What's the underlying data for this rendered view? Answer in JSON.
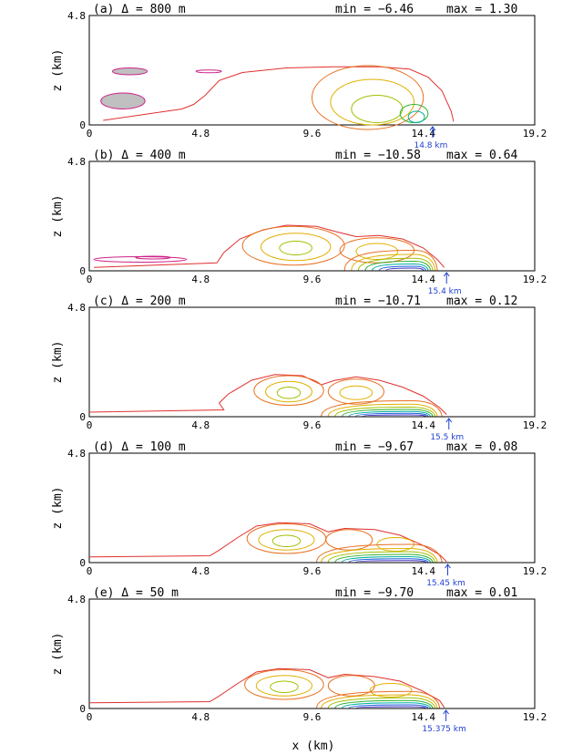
{
  "chart_data": {
    "type": "contour",
    "xlabel": "x (km)",
    "ylabel": "z (km)",
    "xlim": [
      0,
      19.2
    ],
    "ylim": [
      0,
      4.8
    ],
    "x_ticks": [
      "0",
      "4.8",
      "9.6",
      "14.4",
      "19.2"
    ],
    "y_ticks": [
      "0",
      "4.8"
    ],
    "contour_colors": [
      "#e03030",
      "#e87020",
      "#e0b000",
      "#a0c000",
      "#30b030",
      "#00b0a0",
      "#2060e0",
      "#4030c0"
    ],
    "negative_color": "#cc2288",
    "panels": [
      {
        "label": "(a) Δ = 800 m",
        "min_label": "min = −6.46",
        "max_label": "max =  1.30",
        "front_label": "14.8 km",
        "front_x": 14.8,
        "outline": [
          [
            0.6,
            0.2
          ],
          [
            4.0,
            0.7
          ],
          [
            4.5,
            0.9
          ],
          [
            5.0,
            1.3
          ],
          [
            5.6,
            1.95
          ],
          [
            6.6,
            2.3
          ],
          [
            8.5,
            2.5
          ],
          [
            10.5,
            2.55
          ],
          [
            12.5,
            2.55
          ],
          [
            13.8,
            2.45
          ],
          [
            14.6,
            2.1
          ],
          [
            15.2,
            1.5
          ],
          [
            15.6,
            0.6
          ],
          [
            15.7,
            0.15
          ]
        ],
        "rings": [
          {
            "cx": 12.0,
            "cy": 1.2,
            "rx": 2.4,
            "ry": 1.4,
            "level": 1
          },
          {
            "cx": 12.2,
            "cy": 1.0,
            "rx": 1.8,
            "ry": 1.0,
            "level": 2
          },
          {
            "cx": 12.4,
            "cy": 0.7,
            "rx": 1.1,
            "ry": 0.6,
            "level": 3
          },
          {
            "cx": 14.0,
            "cy": 0.5,
            "rx": 0.6,
            "ry": 0.4,
            "level": 4
          },
          {
            "cx": 14.1,
            "cy": 0.35,
            "rx": 0.35,
            "ry": 0.25,
            "level": 5
          }
        ],
        "layers": [],
        "negatives": [
          {
            "x0": 0.5,
            "x1": 2.4,
            "y": 1.05,
            "h": 0.35,
            "fill": true
          },
          {
            "x0": 1.0,
            "x1": 2.5,
            "y": 2.35,
            "h": 0.15,
            "fill": true
          },
          {
            "x0": 4.6,
            "x1": 5.7,
            "y": 2.35,
            "h": 0.06,
            "fill": false
          }
        ]
      },
      {
        "label": "(b) Δ = 400 m",
        "min_label": "min = −10.58",
        "max_label": "max =  0.64",
        "front_label": "15.4 km",
        "front_x": 15.4,
        "outline": [
          [
            0.2,
            0.15
          ],
          [
            5.5,
            0.35
          ],
          [
            5.8,
            0.8
          ],
          [
            6.5,
            1.4
          ],
          [
            7.5,
            1.8
          ],
          [
            8.5,
            2.0
          ],
          [
            9.8,
            1.95
          ],
          [
            10.7,
            1.7
          ],
          [
            11.5,
            1.5
          ],
          [
            12.5,
            1.55
          ],
          [
            13.5,
            1.4
          ],
          [
            14.4,
            1.0
          ],
          [
            15.0,
            0.5
          ],
          [
            15.3,
            0.15
          ]
        ],
        "rings": [
          {
            "cx": 8.8,
            "cy": 1.1,
            "rx": 2.2,
            "ry": 0.85,
            "level": 1
          },
          {
            "cx": 8.9,
            "cy": 1.05,
            "rx": 1.5,
            "ry": 0.6,
            "level": 2
          },
          {
            "cx": 8.9,
            "cy": 1.0,
            "rx": 0.7,
            "ry": 0.3,
            "level": 3
          },
          {
            "cx": 12.4,
            "cy": 0.9,
            "rx": 1.6,
            "ry": 0.55,
            "level": 1
          },
          {
            "cx": 12.4,
            "cy": 0.85,
            "rx": 0.9,
            "ry": 0.35,
            "level": 2
          }
        ],
        "layers": [
          [
            11.0,
            15.0,
            0.9
          ],
          [
            11.3,
            14.9,
            0.72
          ],
          [
            11.6,
            14.8,
            0.55
          ],
          [
            11.9,
            14.7,
            0.42
          ],
          [
            12.2,
            14.6,
            0.3
          ],
          [
            12.5,
            14.5,
            0.2
          ],
          [
            12.8,
            14.4,
            0.12
          ]
        ],
        "negatives": [
          {
            "x0": 0.2,
            "x1": 4.2,
            "y": 0.5,
            "h": 0.12,
            "fill": false
          },
          {
            "x0": 2.0,
            "x1": 3.5,
            "y": 0.58,
            "h": 0.06,
            "fill": false
          }
        ]
      },
      {
        "label": "(c) Δ = 200 m",
        "min_label": "min = −10.71",
        "max_label": "max =  0.12",
        "front_label": "15.5 km",
        "front_x": 15.5,
        "outline": [
          [
            0.0,
            0.2
          ],
          [
            5.8,
            0.3
          ],
          [
            5.6,
            0.6
          ],
          [
            6.0,
            1.0
          ],
          [
            7.0,
            1.6
          ],
          [
            8.0,
            1.85
          ],
          [
            9.2,
            1.8
          ],
          [
            10.0,
            1.4
          ],
          [
            10.6,
            1.6
          ],
          [
            11.5,
            1.75
          ],
          [
            12.5,
            1.6
          ],
          [
            13.5,
            1.3
          ],
          [
            14.4,
            0.9
          ],
          [
            15.1,
            0.4
          ],
          [
            15.4,
            0.1
          ]
        ],
        "rings": [
          {
            "cx": 8.6,
            "cy": 1.15,
            "rx": 1.5,
            "ry": 0.65,
            "level": 1
          },
          {
            "cx": 8.6,
            "cy": 1.1,
            "rx": 1.0,
            "ry": 0.45,
            "level": 2
          },
          {
            "cx": 8.6,
            "cy": 1.05,
            "rx": 0.5,
            "ry": 0.25,
            "level": 3
          },
          {
            "cx": 11.5,
            "cy": 1.1,
            "rx": 1.2,
            "ry": 0.55,
            "level": 1
          },
          {
            "cx": 11.5,
            "cy": 1.05,
            "rx": 0.7,
            "ry": 0.3,
            "level": 2
          }
        ],
        "layers": [
          [
            10.0,
            15.2,
            0.7
          ],
          [
            10.3,
            15.0,
            0.55
          ],
          [
            10.6,
            14.9,
            0.42
          ],
          [
            10.9,
            14.8,
            0.32
          ],
          [
            11.2,
            14.7,
            0.23
          ],
          [
            11.5,
            14.6,
            0.15
          ],
          [
            11.8,
            14.5,
            0.08
          ]
        ],
        "negatives": []
      },
      {
        "label": "(d) Δ = 100 m",
        "min_label": "min = −9.67",
        "max_label": "max =  0.08",
        "front_label": "15.45 km",
        "front_x": 15.45,
        "outline": [
          [
            0.0,
            0.25
          ],
          [
            5.2,
            0.3
          ],
          [
            5.6,
            0.55
          ],
          [
            6.4,
            1.1
          ],
          [
            7.2,
            1.6
          ],
          [
            8.2,
            1.75
          ],
          [
            9.5,
            1.7
          ],
          [
            10.3,
            1.35
          ],
          [
            11.0,
            1.5
          ],
          [
            12.3,
            1.45
          ],
          [
            13.4,
            1.2
          ],
          [
            14.4,
            0.75
          ],
          [
            15.1,
            0.35
          ],
          [
            15.4,
            0.05
          ]
        ],
        "rings": [
          {
            "cx": 8.5,
            "cy": 1.05,
            "rx": 1.7,
            "ry": 0.65,
            "level": 1
          },
          {
            "cx": 8.5,
            "cy": 1.0,
            "rx": 1.2,
            "ry": 0.45,
            "level": 2
          },
          {
            "cx": 8.5,
            "cy": 0.95,
            "rx": 0.6,
            "ry": 0.25,
            "level": 3
          },
          {
            "cx": 11.2,
            "cy": 1.0,
            "rx": 1.0,
            "ry": 0.45,
            "level": 1
          },
          {
            "cx": 13.2,
            "cy": 0.8,
            "rx": 0.8,
            "ry": 0.3,
            "level": 2
          }
        ],
        "layers": [
          [
            9.8,
            15.2,
            0.8
          ],
          [
            10.0,
            15.0,
            0.62
          ],
          [
            10.3,
            14.9,
            0.48
          ],
          [
            10.6,
            14.8,
            0.36
          ],
          [
            10.9,
            14.7,
            0.26
          ],
          [
            11.2,
            14.6,
            0.17
          ],
          [
            11.5,
            14.5,
            0.09
          ]
        ],
        "negatives": []
      },
      {
        "label": "(e) Δ = 50 m",
        "min_label": "min = −9.70",
        "max_label": "max =  0.01",
        "front_label": "15.375 km",
        "front_x": 15.375,
        "outline": [
          [
            0.0,
            0.25
          ],
          [
            5.2,
            0.3
          ],
          [
            5.6,
            0.55
          ],
          [
            6.4,
            1.1
          ],
          [
            7.2,
            1.6
          ],
          [
            8.2,
            1.75
          ],
          [
            9.5,
            1.7
          ],
          [
            10.3,
            1.35
          ],
          [
            11.0,
            1.5
          ],
          [
            12.3,
            1.4
          ],
          [
            13.4,
            1.2
          ],
          [
            14.4,
            0.75
          ],
          [
            15.1,
            0.35
          ],
          [
            15.3,
            0.05
          ]
        ],
        "rings": [
          {
            "cx": 8.4,
            "cy": 1.05,
            "rx": 1.7,
            "ry": 0.65,
            "level": 1
          },
          {
            "cx": 8.4,
            "cy": 1.0,
            "rx": 1.2,
            "ry": 0.45,
            "level": 2
          },
          {
            "cx": 8.4,
            "cy": 0.95,
            "rx": 0.6,
            "ry": 0.25,
            "level": 3
          },
          {
            "cx": 11.3,
            "cy": 1.0,
            "rx": 1.0,
            "ry": 0.45,
            "level": 1
          },
          {
            "cx": 13.0,
            "cy": 0.8,
            "rx": 0.9,
            "ry": 0.3,
            "level": 2
          }
        ],
        "layers": [
          [
            9.8,
            15.1,
            0.75
          ],
          [
            10.0,
            15.0,
            0.6
          ],
          [
            10.3,
            14.9,
            0.47
          ],
          [
            10.6,
            14.8,
            0.35
          ],
          [
            10.9,
            14.7,
            0.25
          ],
          [
            11.2,
            14.6,
            0.16
          ],
          [
            11.5,
            14.5,
            0.08
          ]
        ],
        "negatives": []
      }
    ]
  }
}
